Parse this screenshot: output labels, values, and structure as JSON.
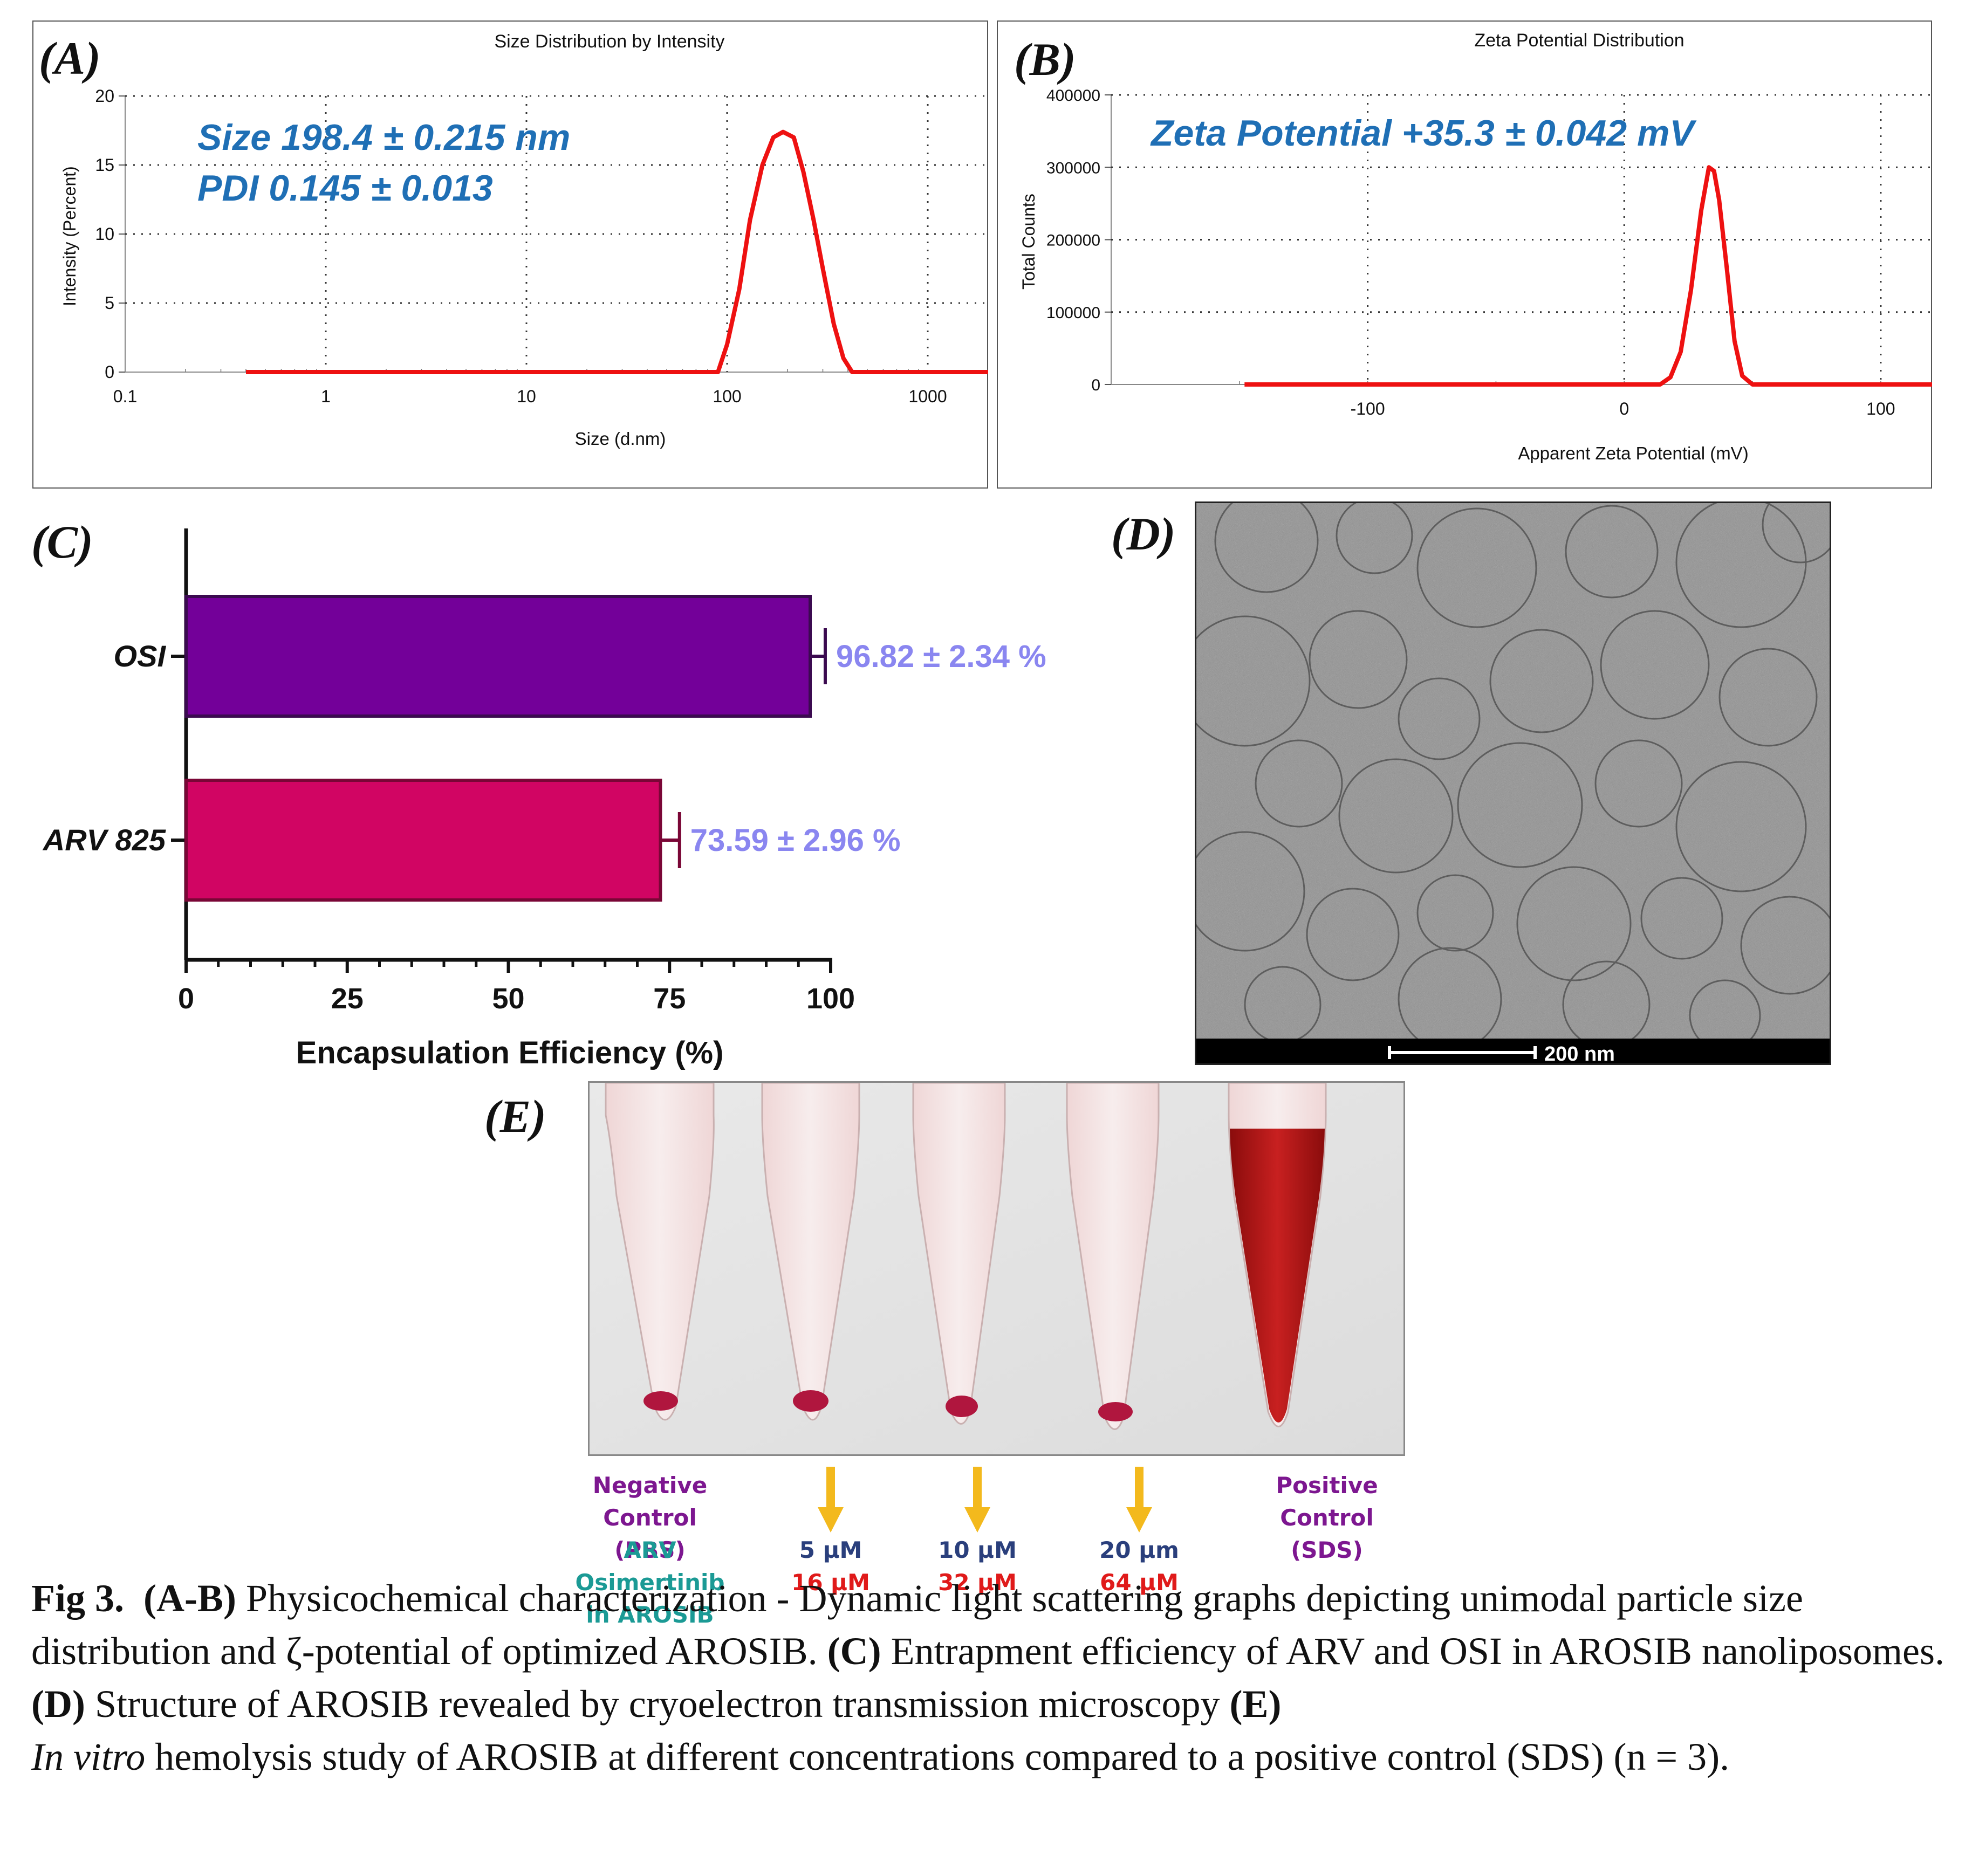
{
  "panels": {
    "a": "(A)",
    "b": "(B)",
    "c": "(C)",
    "d": "(D)",
    "e": "(E)"
  },
  "panel_a": {
    "title": "Size Distribution by Intensity",
    "annotation_line1": "Size 198.4 ± 0.215 nm",
    "annotation_line2": "PDI 0.145 ± 0.013",
    "xlabel": "Size (d.nm)",
    "ylabel": "Intensity (Percent)",
    "xticks": [
      "0.1",
      "1",
      "10",
      "100",
      "1000"
    ],
    "yticks": [
      "0",
      "5",
      "10",
      "15",
      "20"
    ]
  },
  "panel_b": {
    "title": "Zeta Potential Distribution",
    "annotation": "Zeta Potential +35.3 ± 0.042 mV",
    "xlabel": "Apparent Zeta Potential (mV)",
    "ylabel": "Total Counts",
    "xticks": [
      "-100",
      "0",
      "100"
    ],
    "yticks": [
      "0",
      "100000",
      "200000",
      "300000",
      "400000"
    ]
  },
  "panel_c": {
    "xlabel": "Encapsulation Efficiency (%)",
    "xticks": [
      "0",
      "25",
      "50",
      "75",
      "100"
    ],
    "bars": [
      {
        "label": "OSI",
        "value_label": "96.82 ± 2.34 %"
      },
      {
        "label": "ARV 825",
        "value_label": "73.59 ± 2.96 %"
      }
    ]
  },
  "panel_d": {
    "scale_label": "200 nm"
  },
  "panel_e": {
    "neg_control": [
      "Negative",
      "Control (PBS)"
    ],
    "drug_names": [
      "ARV",
      "Osimertinib",
      "in AROSIB"
    ],
    "conc_arv": [
      "5 µM",
      "10 µM",
      "20 µm"
    ],
    "conc_osi": [
      "16 µM",
      "32 µM",
      "64 µM"
    ],
    "pos_control": [
      "Positive",
      "Control (SDS)"
    ]
  },
  "caption": {
    "fig": "Fig 3.",
    "ab": "(A-B)",
    "t1": " Physicochemical characterization - Dynamic light scattering graphs depicting unimodal particle size distribution and ζ-potential of optimized AROSIB. ",
    "c": "(C)",
    "t2": " Entrapment efficiency of ARV and OSI in AROSIB nanoliposomes. ",
    "d": "(D)",
    "t3": " Structure of AROSIB revealed by cryoelectron transmission microscopy ",
    "e": "(E)",
    "invitro": "In vitro",
    "t4": " hemolysis study of AROSIB at different concentrations compared to a positive control (SDS) (n = 3)."
  },
  "colors": {
    "curve": "#ee1111",
    "annotation": "#1f6fb5",
    "bar_osi": "#730099",
    "bar_arv": "#d10563",
    "value_label": "#8a86f0",
    "purple_text": "#7d1790",
    "teal_text": "#1b9a95",
    "navy_text": "#2a3f7c",
    "red_text": "#e01a1a",
    "arrow": "#f3b91d"
  },
  "chart_data": [
    {
      "type": "line",
      "title": "Size Distribution by Intensity",
      "xlabel": "Size (d.nm)",
      "ylabel": "Intensity (Percent)",
      "xscale": "log",
      "xlim": [
        0.1,
        2000
      ],
      "ylim": [
        0,
        20
      ],
      "grid": true,
      "series": [
        {
          "x": [
            0.4,
            90,
            100,
            115,
            130,
            150,
            170,
            190,
            215,
            240,
            270,
            300,
            340,
            380,
            420,
            2000
          ],
          "y": [
            0,
            0,
            2,
            6,
            11,
            15,
            17,
            17.4,
            17,
            14.5,
            11,
            7.5,
            3.5,
            1,
            0,
            0
          ]
        }
      ]
    },
    {
      "type": "line",
      "title": "Zeta Potential Distribution",
      "xlabel": "Apparent Zeta Potential (mV)",
      "ylabel": "Total Counts",
      "xlim": [
        -200,
        120
      ],
      "ylim": [
        0,
        400000
      ],
      "grid": true,
      "series": [
        {
          "x": [
            -148,
            14,
            18,
            22,
            26,
            30,
            33,
            35,
            37,
            40,
            43,
            46,
            50,
            120
          ],
          "y": [
            0,
            0,
            10000,
            45000,
            130000,
            240000,
            300000,
            295000,
            255000,
            160000,
            60000,
            12000,
            0,
            0
          ]
        }
      ]
    },
    {
      "type": "bar",
      "orientation": "horizontal",
      "xlabel": "Encapsulation Efficiency (%)",
      "categories": [
        "OSI",
        "ARV 825"
      ],
      "values": [
        96.82,
        73.59
      ],
      "errors": [
        2.34,
        2.96
      ],
      "xlim": [
        0,
        100
      ]
    }
  ]
}
